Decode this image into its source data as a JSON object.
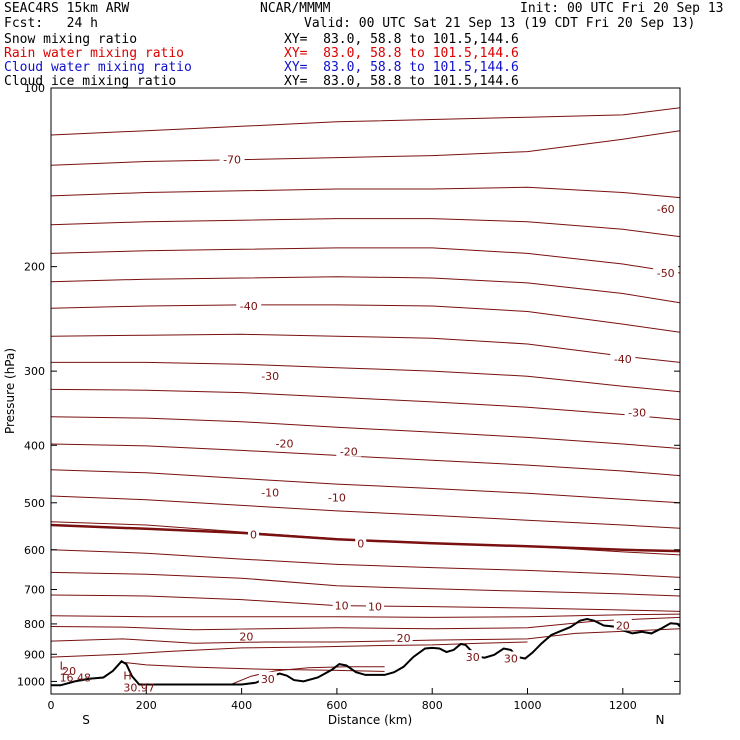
{
  "header": {
    "model": "SEAC4RS 15km ARW",
    "center": "NCAR/MMMM",
    "init": "Init: 00 UTC Fri 20 Sep 13",
    "fcst": "Fcst:   24 h",
    "valid": "Valid: 00 UTC Sat 21 Sep 13 (19 CDT Fri 20 Sep 13)"
  },
  "legend": [
    {
      "name": "Snow mixing ratio",
      "xy": "XY=  83.0, 58.8 to 101.5,144.6",
      "color": "#000000"
    },
    {
      "name": "Rain water mixing ratio",
      "xy": "XY=  83.0, 58.8 to 101.5,144.6",
      "color": "#dd0000"
    },
    {
      "name": "Cloud water mixing ratio",
      "xy": "XY=  83.0, 58.8 to 101.5,144.6",
      "color": "#1010cc"
    },
    {
      "name": "Cloud ice mixing ratio",
      "xy": "XY=  83.0, 58.8 to 101.5,144.6",
      "color": "#000000"
    }
  ],
  "colors": {
    "contour": "#7a1010",
    "terrain": "#000000"
  },
  "chart_data": {
    "type": "contour cross-section",
    "xlabel": "Distance (km)",
    "ylabel": "Pressure (hPa)",
    "xlim": [
      0,
      1320
    ],
    "ylim": [
      1050,
      100
    ],
    "y_scale": "log",
    "x_ticks": [
      0,
      200,
      400,
      600,
      800,
      1000,
      1200
    ],
    "y_ticks": [
      200,
      300,
      400,
      500,
      600,
      700,
      800,
      900,
      1000
    ],
    "y_tick_top": "100",
    "end_labels": {
      "left": "S",
      "right": "N"
    },
    "contour_labels": [
      {
        "text": "-70",
        "x": 380,
        "p": 132
      },
      {
        "text": "-60",
        "x": 1290,
        "p": 160
      },
      {
        "text": "-50",
        "x": 1290,
        "p": 205
      },
      {
        "text": "-40",
        "x": 415,
        "p": 233
      },
      {
        "text": "-40",
        "x": 1200,
        "p": 286
      },
      {
        "text": "-30",
        "x": 460,
        "p": 306
      },
      {
        "text": "-30",
        "x": 1230,
        "p": 352
      },
      {
        "text": "-20",
        "x": 490,
        "p": 397
      },
      {
        "text": "-20",
        "x": 625,
        "p": 410
      },
      {
        "text": "-10",
        "x": 460,
        "p": 480
      },
      {
        "text": "-10",
        "x": 600,
        "p": 490
      },
      {
        "text": "0",
        "x": 425,
        "p": 566
      },
      {
        "text": "0",
        "x": 650,
        "p": 585
      },
      {
        "text": "10",
        "x": 610,
        "p": 745
      },
      {
        "text": "10",
        "x": 680,
        "p": 747
      },
      {
        "text": "20",
        "x": 410,
        "p": 840
      },
      {
        "text": "20",
        "x": 740,
        "p": 845
      },
      {
        "text": "20",
        "x": 1200,
        "p": 805
      },
      {
        "text": "20",
        "x": 38,
        "p": 960
      },
      {
        "text": "30",
        "x": 455,
        "p": 990
      },
      {
        "text": "30",
        "x": 885,
        "p": 910
      },
      {
        "text": "30",
        "x": 965,
        "p": 915
      }
    ],
    "extrema": [
      {
        "kind": "L",
        "value": "16.48",
        "x": 18,
        "p": 1000
      },
      {
        "kind": "H",
        "value": "30.97",
        "x": 152,
        "p": 1040
      }
    ],
    "isolines": [
      {
        "level": -70,
        "points": [
          [
            0,
            120
          ],
          [
            200,
            118
          ],
          [
            400,
            116
          ],
          [
            600,
            114
          ],
          [
            800,
            113
          ],
          [
            1000,
            112
          ],
          [
            1200,
            111
          ],
          [
            1320,
            108
          ]
        ]
      },
      {
        "level": -70,
        "points": [
          [
            0,
            135
          ],
          [
            200,
            133
          ],
          [
            400,
            132
          ],
          [
            600,
            131
          ],
          [
            800,
            130
          ],
          [
            1000,
            128
          ],
          [
            1200,
            122
          ],
          [
            1320,
            118
          ]
        ]
      },
      {
        "level": -60,
        "points": [
          [
            0,
            152
          ],
          [
            200,
            150
          ],
          [
            400,
            149
          ],
          [
            600,
            148
          ],
          [
            800,
            148
          ],
          [
            1000,
            147
          ],
          [
            1200,
            150
          ],
          [
            1320,
            153
          ]
        ]
      },
      {
        "level": -60,
        "points": [
          [
            0,
            170
          ],
          [
            200,
            168
          ],
          [
            400,
            167
          ],
          [
            600,
            166
          ],
          [
            800,
            166
          ],
          [
            1000,
            168
          ],
          [
            1200,
            173
          ],
          [
            1320,
            178
          ]
        ]
      },
      {
        "level": -50,
        "points": [
          [
            0,
            190
          ],
          [
            200,
            188
          ],
          [
            400,
            187
          ],
          [
            600,
            186
          ],
          [
            800,
            186
          ],
          [
            1000,
            190
          ],
          [
            1200,
            198
          ],
          [
            1320,
            205
          ]
        ]
      },
      {
        "level": -50,
        "points": [
          [
            0,
            212
          ],
          [
            200,
            210
          ],
          [
            400,
            209
          ],
          [
            600,
            208
          ],
          [
            800,
            209
          ],
          [
            1000,
            213
          ],
          [
            1200,
            222
          ],
          [
            1320,
            230
          ]
        ]
      },
      {
        "level": -40,
        "points": [
          [
            0,
            235
          ],
          [
            200,
            233
          ],
          [
            400,
            232
          ],
          [
            600,
            232
          ],
          [
            800,
            233
          ],
          [
            1000,
            238
          ],
          [
            1200,
            250
          ],
          [
            1320,
            258
          ]
        ]
      },
      {
        "level": -40,
        "points": [
          [
            0,
            262
          ],
          [
            200,
            261
          ],
          [
            400,
            260
          ],
          [
            600,
            262
          ],
          [
            800,
            264
          ],
          [
            1000,
            270
          ],
          [
            1200,
            283
          ],
          [
            1320,
            290
          ]
        ]
      },
      {
        "level": -30,
        "points": [
          [
            0,
            290
          ],
          [
            200,
            290
          ],
          [
            400,
            292
          ],
          [
            600,
            296
          ],
          [
            800,
            300
          ],
          [
            1000,
            306
          ],
          [
            1200,
            318
          ],
          [
            1320,
            325
          ]
        ]
      },
      {
        "level": -30,
        "points": [
          [
            0,
            322
          ],
          [
            200,
            323
          ],
          [
            400,
            326
          ],
          [
            600,
            332
          ],
          [
            800,
            338
          ],
          [
            1000,
            345
          ],
          [
            1200,
            355
          ],
          [
            1320,
            362
          ]
        ]
      },
      {
        "level": -20,
        "points": [
          [
            0,
            358
          ],
          [
            200,
            360
          ],
          [
            400,
            365
          ],
          [
            600,
            373
          ],
          [
            800,
            380
          ],
          [
            1000,
            388
          ],
          [
            1200,
            398
          ],
          [
            1320,
            405
          ]
        ]
      },
      {
        "level": -20,
        "points": [
          [
            0,
            398
          ],
          [
            200,
            401
          ],
          [
            400,
            408
          ],
          [
            600,
            416
          ],
          [
            800,
            424
          ],
          [
            1000,
            432
          ],
          [
            1200,
            442
          ],
          [
            1320,
            450
          ]
        ]
      },
      {
        "level": -10,
        "points": [
          [
            0,
            440
          ],
          [
            200,
            445
          ],
          [
            400,
            455
          ],
          [
            600,
            465
          ],
          [
            800,
            473
          ],
          [
            1000,
            482
          ],
          [
            1200,
            493
          ],
          [
            1320,
            500
          ]
        ]
      },
      {
        "level": -10,
        "points": [
          [
            0,
            487
          ],
          [
            200,
            494
          ],
          [
            400,
            505
          ],
          [
            600,
            516
          ],
          [
            800,
            525
          ],
          [
            1000,
            535
          ],
          [
            1200,
            545
          ],
          [
            1320,
            552
          ]
        ]
      },
      {
        "level": 0,
        "points": [
          [
            0,
            538
          ],
          [
            200,
            545
          ],
          [
            400,
            560
          ],
          [
            600,
            575
          ],
          [
            800,
            585
          ],
          [
            1000,
            592
          ],
          [
            1200,
            605
          ],
          [
            1320,
            612
          ]
        ]
      },
      {
        "level": 0,
        "points": [
          [
            0,
            600
          ],
          [
            200,
            608
          ],
          [
            400,
            622
          ],
          [
            600,
            635
          ],
          [
            800,
            643
          ],
          [
            1000,
            650
          ],
          [
            1200,
            660
          ],
          [
            1320,
            668
          ]
        ]
      },
      {
        "level": 10,
        "points": [
          [
            0,
            655
          ],
          [
            200,
            660
          ],
          [
            400,
            670
          ],
          [
            600,
            690
          ],
          [
            800,
            698
          ],
          [
            1000,
            705
          ],
          [
            1200,
            712
          ],
          [
            1320,
            718
          ]
        ]
      },
      {
        "level": 10,
        "points": [
          [
            0,
            715
          ],
          [
            200,
            718
          ],
          [
            400,
            728
          ],
          [
            600,
            745
          ],
          [
            800,
            748
          ],
          [
            1000,
            752
          ],
          [
            1200,
            758
          ],
          [
            1320,
            762
          ]
        ]
      },
      {
        "level": 10,
        "points": [
          [
            0,
            775
          ],
          [
            200,
            778
          ],
          [
            400,
            778
          ],
          [
            600,
            778
          ],
          [
            800,
            780
          ],
          [
            1000,
            778
          ],
          [
            1200,
            772
          ],
          [
            1320,
            770
          ]
        ]
      },
      {
        "level": 20,
        "points": [
          [
            0,
            808
          ],
          [
            150,
            810
          ],
          [
            300,
            818
          ],
          [
            450,
            815
          ],
          [
            600,
            812
          ],
          [
            800,
            815
          ],
          [
            1000,
            812
          ],
          [
            1150,
            790
          ],
          [
            1320,
            780
          ]
        ]
      },
      {
        "level": 20,
        "points": [
          [
            0,
            855
          ],
          [
            150,
            848
          ],
          [
            300,
            862
          ],
          [
            450,
            858
          ],
          [
            600,
            858
          ],
          [
            800,
            852
          ],
          [
            1000,
            848
          ],
          [
            1100,
            830
          ],
          [
            1250,
            820
          ],
          [
            1320,
            815
          ]
        ]
      },
      {
        "level": 20,
        "points": [
          [
            0,
            910
          ],
          [
            150,
            900
          ],
          [
            250,
            890
          ],
          [
            400,
            878
          ],
          [
            550,
            875
          ],
          [
            700,
            870
          ],
          [
            800,
            868
          ],
          [
            900,
            862
          ],
          [
            1000,
            858
          ]
        ]
      },
      {
        "level": 20,
        "points": [
          [
            150,
            928
          ],
          [
            200,
            938
          ],
          [
            300,
            946
          ],
          [
            450,
            954
          ],
          [
            600,
            958
          ],
          [
            700,
            962
          ]
        ]
      },
      {
        "level": 30,
        "points": [
          [
            380,
            1010
          ],
          [
            420,
            980
          ],
          [
            470,
            960
          ],
          [
            540,
            948
          ],
          [
            620,
            945
          ],
          [
            700,
            945
          ]
        ]
      }
    ],
    "bold_zero_isoline": [
      [
        0,
        545
      ],
      [
        200,
        553
      ],
      [
        400,
        562
      ],
      [
        600,
        576
      ],
      [
        800,
        585
      ],
      [
        1000,
        592
      ],
      [
        1200,
        600
      ],
      [
        1320,
        603
      ]
    ],
    "terrain": [
      [
        0,
        1015
      ],
      [
        20,
        1015
      ],
      [
        50,
        1000
      ],
      [
        80,
        990
      ],
      [
        110,
        985
      ],
      [
        130,
        960
      ],
      [
        148,
        925
      ],
      [
        158,
        935
      ],
      [
        170,
        980
      ],
      [
        185,
        1012
      ],
      [
        220,
        1012
      ],
      [
        300,
        1012
      ],
      [
        360,
        1012
      ],
      [
        400,
        1012
      ],
      [
        430,
        1005
      ],
      [
        460,
        982
      ],
      [
        480,
        970
      ],
      [
        495,
        978
      ],
      [
        510,
        995
      ],
      [
        530,
        1000
      ],
      [
        560,
        985
      ],
      [
        590,
        955
      ],
      [
        605,
        935
      ],
      [
        620,
        940
      ],
      [
        640,
        965
      ],
      [
        660,
        975
      ],
      [
        700,
        975
      ],
      [
        720,
        965
      ],
      [
        740,
        945
      ],
      [
        760,
        910
      ],
      [
        785,
        880
      ],
      [
        800,
        878
      ],
      [
        815,
        880
      ],
      [
        830,
        892
      ],
      [
        845,
        885
      ],
      [
        860,
        865
      ],
      [
        870,
        868
      ],
      [
        880,
        885
      ],
      [
        895,
        908
      ],
      [
        910,
        912
      ],
      [
        930,
        902
      ],
      [
        950,
        880
      ],
      [
        965,
        885
      ],
      [
        980,
        910
      ],
      [
        995,
        915
      ],
      [
        1010,
        895
      ],
      [
        1030,
        862
      ],
      [
        1050,
        835
      ],
      [
        1070,
        822
      ],
      [
        1090,
        810
      ],
      [
        1110,
        790
      ],
      [
        1125,
        785
      ],
      [
        1140,
        790
      ],
      [
        1160,
        805
      ],
      [
        1180,
        808
      ],
      [
        1200,
        820
      ],
      [
        1220,
        830
      ],
      [
        1240,
        825
      ],
      [
        1260,
        830
      ],
      [
        1280,
        815
      ],
      [
        1300,
        798
      ],
      [
        1315,
        800
      ],
      [
        1320,
        808
      ]
    ]
  }
}
